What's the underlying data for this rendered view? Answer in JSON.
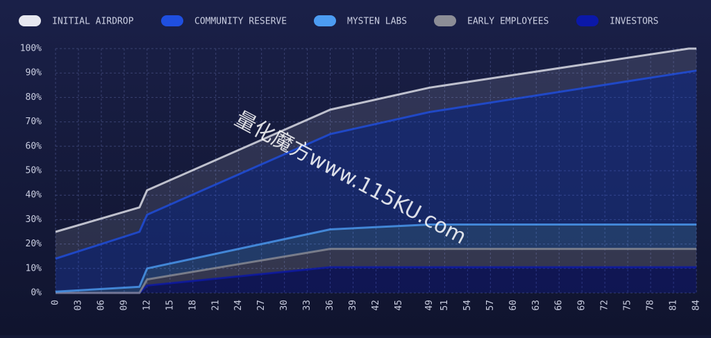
{
  "chart_data": {
    "type": "stacked-area",
    "x": [
      0,
      11,
      12,
      36,
      49,
      83,
      84
    ],
    "xlim": [
      0,
      84
    ],
    "xticks": [
      0,
      {
        "value": 3,
        "label": "03"
      },
      {
        "value": 6,
        "label": "06"
      },
      {
        "value": 9,
        "label": "09"
      },
      12,
      15,
      18,
      21,
      24,
      27,
      30,
      33,
      36,
      39,
      42,
      45,
      49,
      51,
      54,
      57,
      60,
      63,
      66,
      69,
      72,
      75,
      78,
      81,
      84
    ],
    "ylim": [
      0,
      100
    ],
    "yticks": [
      {
        "value": 0,
        "label": "0%"
      },
      {
        "value": 10,
        "label": "10%"
      },
      {
        "value": 20,
        "label": "20%"
      },
      {
        "value": 30,
        "label": "30%"
      },
      {
        "value": 40,
        "label": "40%"
      },
      {
        "value": 50,
        "label": "50%"
      },
      {
        "value": 60,
        "label": "60%"
      },
      {
        "value": 70,
        "label": "70%"
      },
      {
        "value": 80,
        "label": "80%"
      },
      {
        "value": 90,
        "label": "90%"
      },
      {
        "value": 100,
        "label": "100%"
      }
    ],
    "grid": true,
    "legend": "top",
    "series": [
      {
        "name": "INITIAL AIRDROP",
        "color": "#e6e7ef",
        "values": [
          11,
          10,
          10,
          10,
          10,
          9.5,
          9
        ]
      },
      {
        "name": "COMMUNITY RESERVE",
        "color": "#1f4fe0",
        "values": [
          13.5,
          22.5,
          22,
          39,
          46,
          62.5,
          63
        ]
      },
      {
        "name": "MYSTEN LABS",
        "color": "#4c9cf2",
        "values": [
          0.5,
          2.5,
          4.5,
          8,
          10,
          10,
          10
        ]
      },
      {
        "name": "EARLY EMPLOYEES",
        "color": "#8c8d96",
        "values": [
          0,
          0,
          2.5,
          7.5,
          7.5,
          7.5,
          7.5
        ]
      },
      {
        "name": "INVESTORS",
        "color": "#0b18a8",
        "values": [
          0,
          0,
          3,
          10.5,
          10.5,
          10.5,
          10.5
        ]
      }
    ],
    "watermark": "量化魔方www.115KU.com"
  }
}
